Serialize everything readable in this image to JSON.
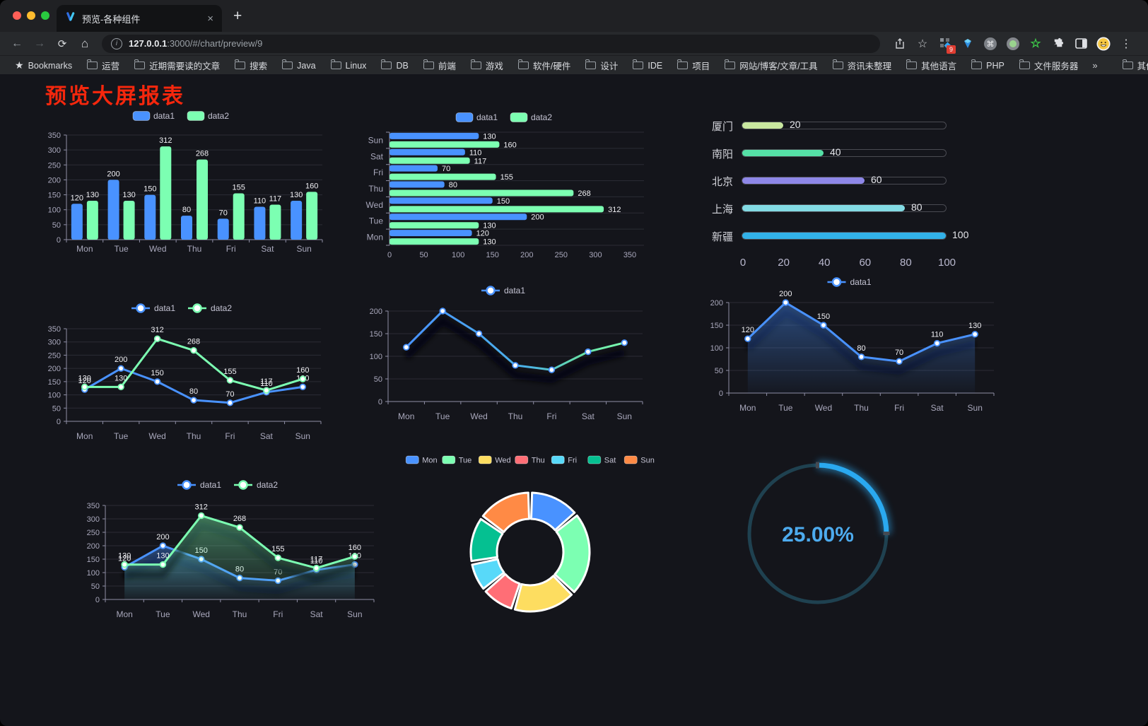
{
  "browser": {
    "tab": {
      "title": "预览-各种组件",
      "close_label": "×"
    },
    "new_tab_label": "+",
    "nav": {
      "back": "←",
      "forward": "→",
      "reload": "⟳",
      "home": "⌂"
    },
    "url": {
      "host": "127.0.0.1",
      "rest": ":3000/#/chart/preview/9"
    },
    "actions": {
      "extension_badge": "9",
      "star_label": "☆",
      "command_glyph": "⌘",
      "green_star": "☆",
      "menu_dots": "⋮"
    },
    "bookmarks_bar": {
      "star_label": "Bookmarks",
      "folders": [
        "运营",
        "近期需要读的文章",
        "搜索",
        "Java",
        "Linux",
        "DB",
        "前端",
        "游戏",
        "软件/硬件",
        "设计",
        "IDE",
        "项目",
        "网站/博客/文章/工具",
        "资讯未整理",
        "其他语言",
        "PHP",
        "文件服务器"
      ],
      "overflow": "»",
      "other": "其他书签"
    }
  },
  "page": {
    "title": "预览大屏报表",
    "title_color": "#f5270d",
    "background": "#14151b"
  },
  "chart_data": [
    {
      "id": "bar-grouped",
      "type": "bar",
      "categories": [
        "Mon",
        "Tue",
        "Wed",
        "Thu",
        "Fri",
        "Sat",
        "Sun"
      ],
      "series": [
        {
          "name": "data1",
          "color": "#4992ff",
          "values": [
            120,
            200,
            150,
            80,
            70,
            110,
            130
          ]
        },
        {
          "name": "data2",
          "color": "#7cffb2",
          "values": [
            130,
            130,
            312,
            268,
            155,
            117,
            160
          ]
        }
      ],
      "ylim": [
        0,
        350
      ],
      "ystep": 50,
      "legend_position": "top",
      "grid": true
    },
    {
      "id": "bar-horizontal",
      "type": "bar-horizontal",
      "categories": [
        "Mon",
        "Tue",
        "Wed",
        "Thu",
        "Fri",
        "Sat",
        "Sun"
      ],
      "display_order_top_to_bottom": [
        "Sun",
        "Sat",
        "Fri",
        "Thu",
        "Wed",
        "Tue",
        "Mon"
      ],
      "series": [
        {
          "name": "data1",
          "color": "#4992ff",
          "values": [
            120,
            200,
            150,
            80,
            70,
            110,
            130
          ]
        },
        {
          "name": "data2",
          "color": "#7cffb2",
          "values": [
            130,
            130,
            312,
            268,
            155,
            117,
            160
          ]
        }
      ],
      "xlim": [
        0,
        350
      ],
      "xstep": 50,
      "legend_position": "top",
      "grid": true
    },
    {
      "id": "city-progress",
      "type": "progress",
      "items": [
        {
          "label": "厦门",
          "value": 20,
          "color": "#c9e7a0"
        },
        {
          "label": "南阳",
          "value": 40,
          "color": "#55e0a6"
        },
        {
          "label": "北京",
          "value": 60,
          "color": "#8e87e8"
        },
        {
          "label": "上海",
          "value": 80,
          "color": "#83dbe4"
        },
        {
          "label": "新疆",
          "value": 100,
          "color": "#32b1e8"
        }
      ],
      "xlim": [
        0,
        100
      ],
      "xticks": [
        0,
        20,
        40,
        60,
        80,
        100
      ]
    },
    {
      "id": "line-two",
      "type": "line",
      "categories": [
        "Mon",
        "Tue",
        "Wed",
        "Thu",
        "Fri",
        "Sat",
        "Sun"
      ],
      "series": [
        {
          "name": "data1",
          "color": "#4992ff",
          "values": [
            120,
            200,
            150,
            80,
            70,
            110,
            130
          ]
        },
        {
          "name": "data2",
          "color": "#7cffb2",
          "values": [
            130,
            130,
            312,
            268,
            155,
            117,
            160
          ]
        }
      ],
      "ylim": [
        0,
        350
      ],
      "ystep": 50,
      "show_labels": true,
      "legend_position": "top"
    },
    {
      "id": "line-gradient",
      "type": "line",
      "categories": [
        "Mon",
        "Tue",
        "Wed",
        "Thu",
        "Fri",
        "Sat",
        "Sun"
      ],
      "series": [
        {
          "name": "data1",
          "color": "#4992ff",
          "values": [
            120,
            200,
            150,
            80,
            70,
            110,
            130
          ]
        }
      ],
      "ylim": [
        0,
        200
      ],
      "ystep": 50,
      "show_labels": false,
      "shadow": true,
      "gradient_stroke": [
        "#4992ff",
        "#4bb3e8",
        "#66dfa6",
        "#7cffb2"
      ],
      "legend_position": "top"
    },
    {
      "id": "area-single",
      "type": "line",
      "categories": [
        "Mon",
        "Tue",
        "Wed",
        "Thu",
        "Fri",
        "Sat",
        "Sun"
      ],
      "series": [
        {
          "name": "data1",
          "color": "#4992ff",
          "values": [
            120,
            200,
            150,
            80,
            70,
            110,
            130
          ]
        }
      ],
      "ylim": [
        0,
        200
      ],
      "ystep": 50,
      "show_labels": true,
      "shadow": true,
      "area": true,
      "legend_position": "top"
    },
    {
      "id": "area-two",
      "type": "line",
      "categories": [
        "Mon",
        "Tue",
        "Wed",
        "Thu",
        "Fri",
        "Sat",
        "Sun"
      ],
      "series": [
        {
          "name": "data1",
          "color": "#4992ff",
          "values": [
            120,
            200,
            150,
            80,
            70,
            110,
            130
          ]
        },
        {
          "name": "data2",
          "color": "#7cffb2",
          "values": [
            130,
            130,
            312,
            268,
            155,
            117,
            160
          ]
        }
      ],
      "ylim": [
        0,
        350
      ],
      "ystep": 50,
      "show_labels": true,
      "shadow": true,
      "area": true,
      "legend_position": "top"
    },
    {
      "id": "donut",
      "type": "pie",
      "categories": [
        "Mon",
        "Tue",
        "Wed",
        "Thu",
        "Fri",
        "Sat",
        "Sun"
      ],
      "values": [
        120,
        200,
        150,
        80,
        70,
        110,
        130
      ],
      "colors": [
        "#4992ff",
        "#7cffb2",
        "#fddd60",
        "#ff6e76",
        "#58d9f9",
        "#05c091",
        "#ff8a45"
      ],
      "legend_position": "top",
      "donut": true
    },
    {
      "id": "gauge",
      "type": "gauge",
      "value": 25,
      "label": "25.00%",
      "color": "#2aa9f0",
      "track_color": "#1f4150",
      "text_color": "#4dabee"
    }
  ]
}
